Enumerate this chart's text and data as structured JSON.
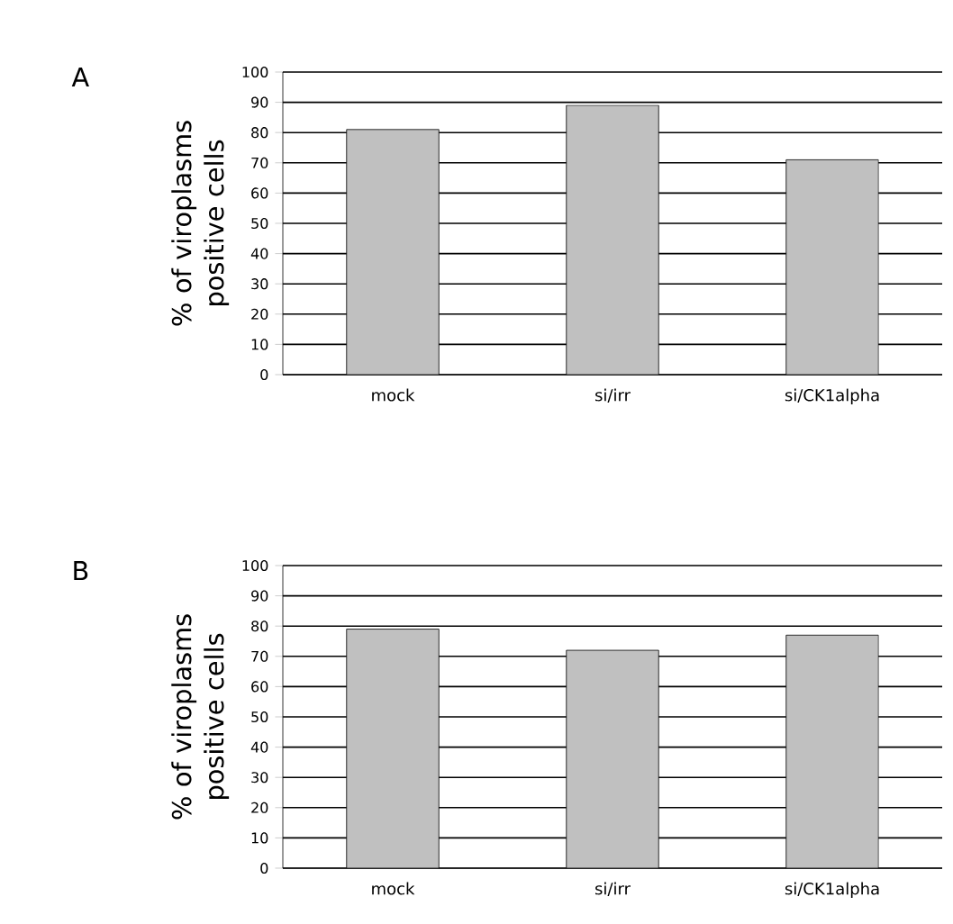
{
  "chart_data": [
    {
      "type": "bar",
      "title": "A",
      "ylabel": "% of  viroplasms positive cells",
      "categories": [
        "mock",
        "si/irr",
        "si/CK1alpha"
      ],
      "values": [
        81,
        89,
        71
      ],
      "color": "#c0c0c0",
      "ylim": [
        0,
        100
      ],
      "yticks": [
        0,
        10,
        20,
        30,
        40,
        50,
        60,
        70,
        80,
        90,
        100
      ],
      "grid": "y"
    },
    {
      "type": "bar",
      "title": "B",
      "ylabel": "% of  viroplasms positive cells",
      "categories": [
        "mock",
        "si/irr",
        "si/CK1alpha"
      ],
      "values": [
        79,
        72,
        77
      ],
      "color": "#c0c0c0",
      "ylim": [
        0,
        100
      ],
      "yticks": [
        0,
        10,
        20,
        30,
        40,
        50,
        60,
        70,
        80,
        90,
        100
      ],
      "grid": "y"
    }
  ]
}
